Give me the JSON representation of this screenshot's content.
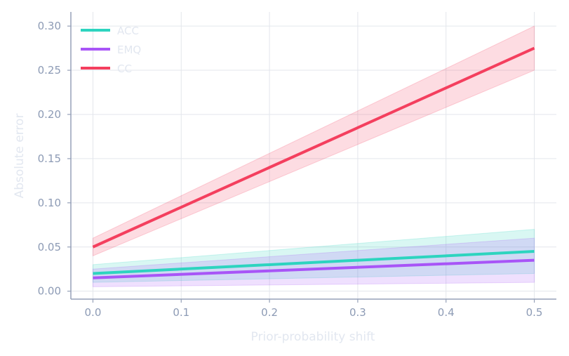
{
  "chart_data": {
    "type": "line",
    "title": "",
    "xlabel": "Prior-probability shift",
    "ylabel": "Absolute error",
    "xlim": [
      -0.025,
      0.525
    ],
    "ylim": [
      -0.009,
      0.316
    ],
    "xticks": [
      0.0,
      0.1,
      0.2,
      0.3,
      0.4,
      0.5
    ],
    "yticks": [
      0.0,
      0.05,
      0.1,
      0.15,
      0.2,
      0.25,
      0.3
    ],
    "xtick_labels": [
      "0.0",
      "0.1",
      "0.2",
      "0.3",
      "0.4",
      "0.5"
    ],
    "ytick_labels": [
      "0.00",
      "0.05",
      "0.10",
      "0.15",
      "0.20",
      "0.25",
      "0.30"
    ],
    "grid": true,
    "legend_position": "top-left",
    "series": [
      {
        "name": "ACC",
        "color": "#2dd4bf",
        "x": [
          0.0,
          0.5
        ],
        "y": [
          0.02,
          0.045
        ],
        "band_low": [
          0.01,
          0.02
        ],
        "band_high": [
          0.03,
          0.07
        ]
      },
      {
        "name": "EMQ",
        "color": "#a855f7",
        "x": [
          0.0,
          0.5
        ],
        "y": [
          0.015,
          0.035
        ],
        "band_low": [
          0.005,
          0.01
        ],
        "band_high": [
          0.025,
          0.06
        ]
      },
      {
        "name": "CC",
        "color": "#f43f5e",
        "x": [
          0.0,
          0.5
        ],
        "y": [
          0.05,
          0.275
        ],
        "band_low": [
          0.04,
          0.25
        ],
        "band_high": [
          0.06,
          0.3
        ]
      }
    ]
  }
}
